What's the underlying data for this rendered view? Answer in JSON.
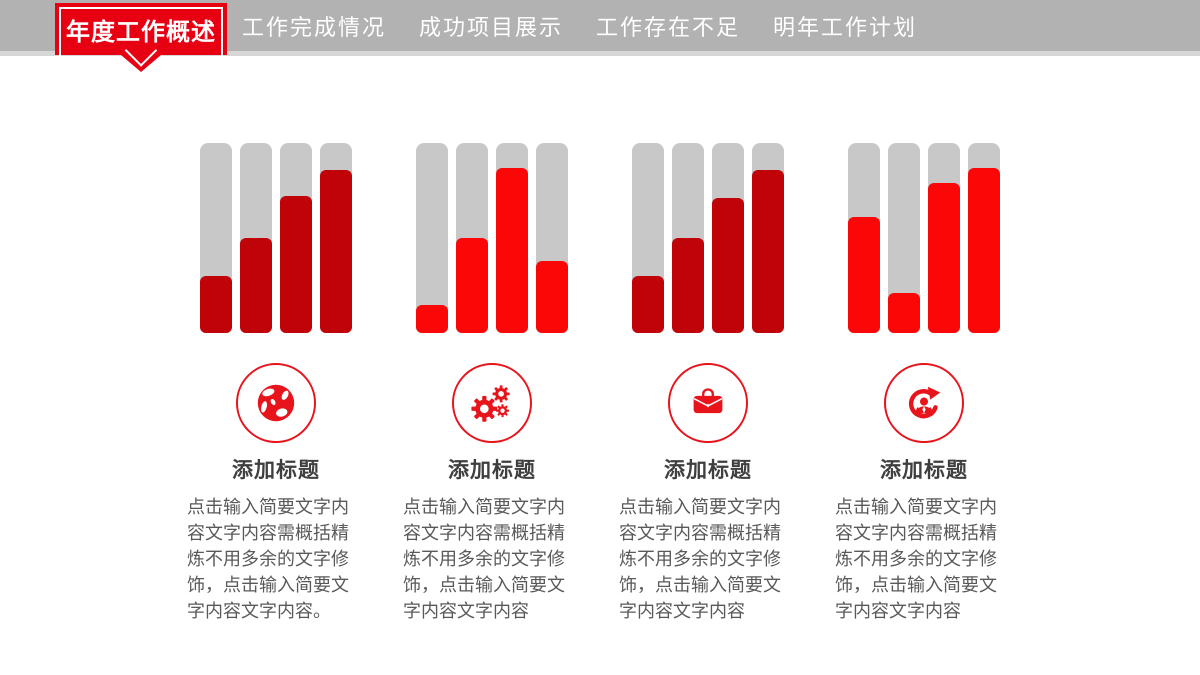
{
  "slide": {
    "header": {
      "active_tab": "年度工作概述",
      "menu_items": [
        "工作完成情况",
        "成功项目展示",
        "工作存在不足",
        "明年工作计划"
      ]
    },
    "columns": [
      {
        "icon": "globe-icon",
        "title": "添加标题",
        "body": "点击输入简要文字内容文字内容需概括精炼不用多余的文字修饰，点击输入简要文字内容文字内容。"
      },
      {
        "icon": "gears-icon",
        "title": "添加标题",
        "body": "点击输入简要文字内容文字内容需概括精炼不用多余的文字修饰，点击输入简要文字内容文字内容"
      },
      {
        "icon": "briefcase-icon",
        "title": "添加标题",
        "body": "点击输入简要文字内容文字内容需概括精炼不用多余的文字修饰，点击输入简要文字内容文字内容"
      },
      {
        "icon": "person-refresh-icon",
        "title": "添加标题",
        "body": "点击输入简要文字内容文字内容需概括精炼不用多余的文字修饰，点击输入简要文字内容文字内容"
      }
    ],
    "colors": {
      "badge_red": "#e60012",
      "header_gray": "#b2b2b2",
      "icon_red": "#e8141c",
      "title_text": "#3f3f3f",
      "body_text": "#595959"
    }
  },
  "chart_data": [
    {
      "type": "bar",
      "title": "",
      "xlabel": "",
      "ylabel": "",
      "ylim": [
        0,
        100
      ],
      "grid": false,
      "legend": false,
      "values": [
        30,
        50,
        72,
        86
      ],
      "unit": "percent-of-track",
      "bar_color": "#c00308",
      "track_color": "#c8c8c8"
    },
    {
      "type": "bar",
      "title": "",
      "xlabel": "",
      "ylabel": "",
      "ylim": [
        0,
        100
      ],
      "grid": false,
      "legend": false,
      "values": [
        15,
        50,
        87,
        38
      ],
      "unit": "percent-of-track",
      "bar_color": "#fb0707",
      "track_color": "#c8c8c8"
    },
    {
      "type": "bar",
      "title": "",
      "xlabel": "",
      "ylabel": "",
      "ylim": [
        0,
        100
      ],
      "grid": false,
      "legend": false,
      "values": [
        30,
        50,
        71,
        86
      ],
      "unit": "percent-of-track",
      "bar_color": "#c00308",
      "track_color": "#c8c8c8"
    },
    {
      "type": "bar",
      "title": "",
      "xlabel": "",
      "ylabel": "",
      "ylim": [
        0,
        100
      ],
      "grid": false,
      "legend": false,
      "values": [
        61,
        21,
        79,
        87
      ],
      "unit": "percent-of-track",
      "bar_color": "#fb0707",
      "track_color": "#c8c8c8"
    }
  ]
}
